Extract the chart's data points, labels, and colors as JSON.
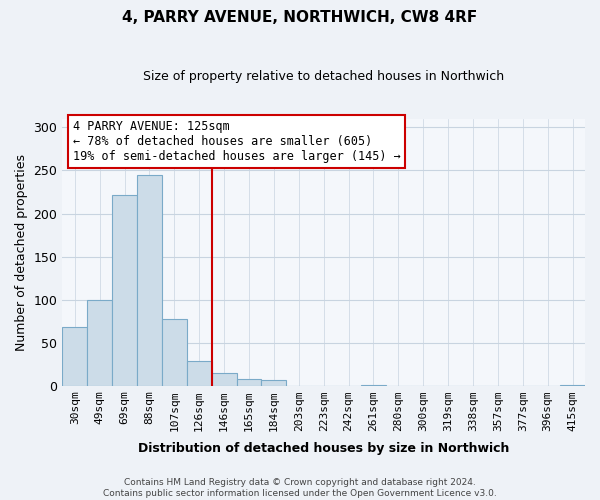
{
  "title": "4, PARRY AVENUE, NORTHWICH, CW8 4RF",
  "subtitle": "Size of property relative to detached houses in Northwich",
  "xlabel": "Distribution of detached houses by size in Northwich",
  "ylabel": "Number of detached properties",
  "bar_labels": [
    "30sqm",
    "49sqm",
    "69sqm",
    "88sqm",
    "107sqm",
    "126sqm",
    "146sqm",
    "165sqm",
    "184sqm",
    "203sqm",
    "223sqm",
    "242sqm",
    "261sqm",
    "280sqm",
    "300sqm",
    "319sqm",
    "338sqm",
    "357sqm",
    "377sqm",
    "396sqm",
    "415sqm"
  ],
  "bar_values": [
    68,
    100,
    222,
    245,
    77,
    29,
    15,
    8,
    6,
    0,
    0,
    0,
    1,
    0,
    0,
    0,
    0,
    0,
    0,
    0,
    1
  ],
  "bar_color": "#ccdce8",
  "bar_edge_color": "#7aaac8",
  "vline_color": "#cc0000",
  "annotation_text": "4 PARRY AVENUE: 125sqm\n← 78% of detached houses are smaller (605)\n19% of semi-detached houses are larger (145) →",
  "annotation_box_color": "#ffffff",
  "annotation_box_edge_color": "#cc0000",
  "ylim": [
    0,
    310
  ],
  "yticks": [
    0,
    50,
    100,
    150,
    200,
    250,
    300
  ],
  "footer": "Contains HM Land Registry data © Crown copyright and database right 2024.\nContains public sector information licensed under the Open Government Licence v3.0.",
  "background_color": "#eef2f7",
  "plot_background_color": "#f4f7fb",
  "grid_color": "#c8d4e0",
  "title_fontsize": 11,
  "subtitle_fontsize": 9,
  "ylabel_fontsize": 9,
  "xlabel_fontsize": 9,
  "tick_fontsize": 8,
  "footer_fontsize": 6.5
}
